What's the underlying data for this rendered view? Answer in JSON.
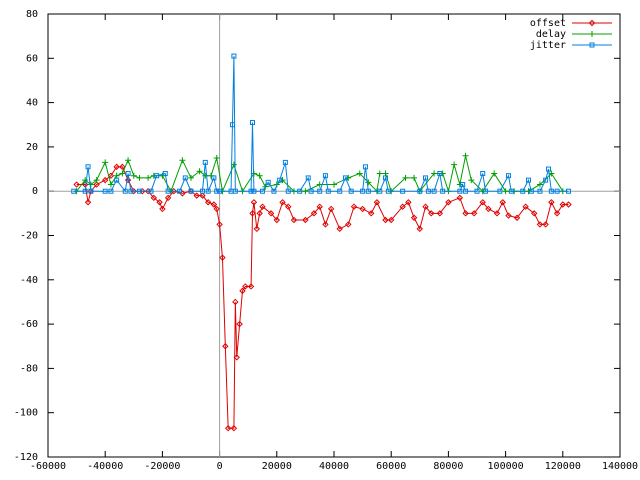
{
  "chart_data": {
    "type": "line",
    "xlim": [
      -60000,
      140000
    ],
    "ylim": [
      -120,
      80
    ],
    "xticks": [
      -60000,
      -40000,
      -20000,
      0,
      20000,
      40000,
      60000,
      80000,
      100000,
      120000,
      140000
    ],
    "yticks": [
      -120,
      -100,
      -80,
      -60,
      -40,
      -20,
      0,
      20,
      40,
      60,
      80
    ],
    "zero_axes": true,
    "legend": "top-right",
    "series": [
      {
        "name": "offset",
        "color": "#e00000",
        "marker": "diamond",
        "x": [
          -50000,
          -47000,
          -46000,
          -45000,
          -43000,
          -40000,
          -38000,
          -36000,
          -34000,
          -32000,
          -30000,
          -27000,
          -25000,
          -23000,
          -21000,
          -20000,
          -18000,
          -16000,
          -13000,
          -10000,
          -8000,
          -6000,
          -4000,
          -2000,
          -1000,
          0,
          1000,
          2000,
          3000,
          5000,
          5500,
          6000,
          7000,
          8000,
          9000,
          11000,
          11500,
          12000,
          13000,
          14000,
          15000,
          18000,
          20000,
          22000,
          24000,
          26000,
          30000,
          33000,
          35000,
          37000,
          39000,
          42000,
          45000,
          47000,
          50000,
          53000,
          55000,
          58000,
          60000,
          64000,
          66000,
          68000,
          70000,
          72000,
          74000,
          77000,
          80000,
          84000,
          86000,
          89000,
          92000,
          94000,
          97000,
          99000,
          101000,
          104000,
          107000,
          110000,
          112000,
          114000,
          116000,
          118000,
          120000,
          122000
        ],
        "values": [
          3,
          3,
          -5,
          0,
          3,
          5,
          7,
          11,
          11,
          5,
          0,
          0,
          0,
          -3,
          -5,
          -8,
          -3,
          0,
          -1,
          0,
          -2,
          -2,
          -5,
          -6,
          -8,
          -15,
          -30,
          -70,
          -107,
          -107,
          -50,
          -75,
          -60,
          -45,
          -43,
          -43,
          -10,
          -5,
          -17,
          -10,
          -7,
          -10,
          -13,
          -5,
          -7,
          -13,
          -13,
          -10,
          -7,
          -15,
          -8,
          -17,
          -15,
          -7,
          -8,
          -10,
          -5,
          -13,
          -13,
          -7,
          -5,
          -12,
          -17,
          -7,
          -10,
          -10,
          -5,
          -3,
          -10,
          -10,
          -5,
          -8,
          -10,
          -5,
          -11,
          -12,
          -7,
          -10,
          -15,
          -15,
          -5,
          -10,
          -6,
          -6
        ]
      },
      {
        "name": "delay",
        "color": "#00a000",
        "marker": "plus",
        "x": [
          -50000,
          -47000,
          -45000,
          -43000,
          -40000,
          -38000,
          -36000,
          -34000,
          -32000,
          -30000,
          -28000,
          -25000,
          -23000,
          -20000,
          -17000,
          -13000,
          -10000,
          -7000,
          -5000,
          -3000,
          -1000,
          1000,
          5000,
          8000,
          12000,
          14000,
          16000,
          20000,
          22000,
          26000,
          30000,
          35000,
          40000,
          45000,
          49000,
          52000,
          55000,
          56000,
          58000,
          60000,
          65000,
          68000,
          70000,
          75000,
          78000,
          80000,
          82000,
          84000,
          86000,
          88000,
          92000,
          96000,
          100000,
          103000,
          108000,
          112000,
          116000,
          120000
        ],
        "values": [
          0,
          5,
          3,
          5,
          13,
          3,
          7,
          8,
          14,
          7,
          6,
          6,
          7,
          7,
          0,
          14,
          6,
          9,
          7,
          7,
          15,
          0,
          12,
          0,
          8,
          7,
          2,
          3,
          5,
          0,
          0,
          3,
          3,
          6,
          8,
          4,
          0,
          8,
          8,
          0,
          6,
          6,
          0,
          8,
          8,
          0,
          12,
          3,
          16,
          5,
          0,
          8,
          0,
          0,
          0,
          3,
          8,
          0
        ]
      },
      {
        "name": "jitter",
        "color": "#0080e0",
        "marker": "square",
        "x": [
          -51000,
          -47000,
          -46000,
          -45000,
          -40000,
          -38000,
          -36000,
          -33000,
          -32000,
          -31000,
          -28000,
          -24000,
          -22000,
          -19000,
          -18000,
          -14000,
          -12000,
          -10000,
          -6000,
          -5000,
          -4000,
          -2000,
          -1000,
          0,
          4000,
          4500,
          5000,
          5500,
          11000,
          11500,
          12000,
          15000,
          17000,
          19000,
          21000,
          23000,
          24000,
          28000,
          31000,
          32000,
          35000,
          37000,
          38000,
          42000,
          44000,
          46000,
          50000,
          51000,
          52000,
          56000,
          58000,
          59000,
          64000,
          70000,
          72000,
          73000,
          75000,
          77000,
          78000,
          84000,
          85000,
          86000,
          90000,
          92000,
          93000,
          98000,
          101000,
          102000,
          106000,
          108000,
          109000,
          112000,
          114000,
          115000,
          116000,
          118000,
          122000
        ],
        "values": [
          0,
          0,
          11,
          0,
          0,
          0,
          5,
          0,
          8,
          0,
          0,
          0,
          7,
          8,
          0,
          0,
          6,
          0,
          0,
          13,
          0,
          6,
          0,
          0,
          0,
          30,
          61,
          0,
          0,
          31,
          0,
          0,
          4,
          0,
          5,
          13,
          0,
          0,
          6,
          0,
          0,
          7,
          0,
          0,
          6,
          0,
          0,
          11,
          0,
          0,
          6,
          0,
          0,
          0,
          6,
          0,
          0,
          8,
          0,
          0,
          3,
          0,
          0,
          8,
          0,
          0,
          7,
          0,
          0,
          5,
          0,
          0,
          5,
          10,
          0,
          0,
          0
        ]
      }
    ]
  }
}
